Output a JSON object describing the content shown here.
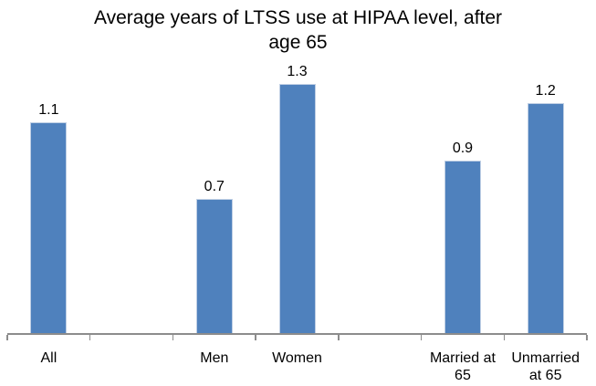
{
  "chart_data": {
    "type": "bar",
    "title": "Average years of LTSS use at HIPAA level, after age 65",
    "categories": [
      "All",
      "",
      "Men",
      "Women",
      "",
      "Married at 65",
      "Unmarried at 65"
    ],
    "values": [
      1.1,
      null,
      0.7,
      1.3,
      null,
      0.9,
      1.2
    ],
    "data_labels": [
      "1.1",
      "",
      "0.7",
      "1.3",
      "",
      "0.9",
      "1.2"
    ],
    "xlabel": "",
    "ylabel": "",
    "ylim": [
      0,
      1.45
    ],
    "grid": false,
    "legend_position": "none",
    "y_axis_visible": false,
    "colors": {
      "bar_fill": "#4f81bd",
      "bar_border": "#bfcfe4",
      "axis_line": "#8c8c8c",
      "text": "#000000",
      "background": "#ffffff"
    }
  }
}
